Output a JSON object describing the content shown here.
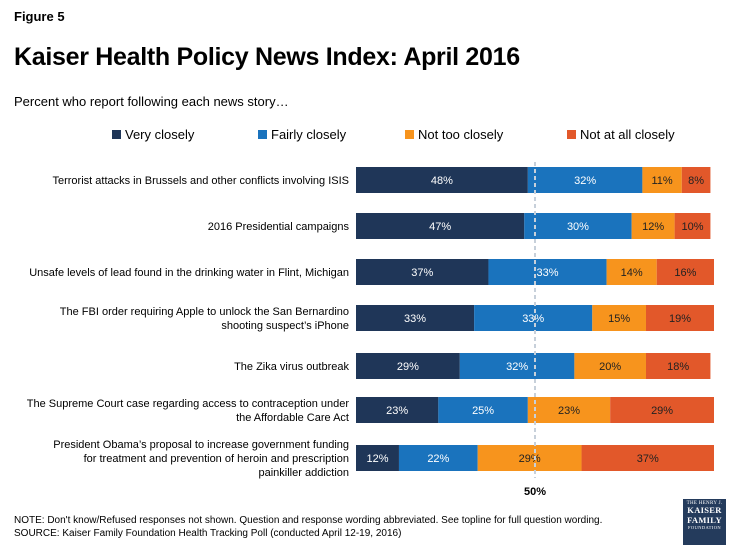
{
  "figure_label": "Figure 5",
  "title": "Kaiser Health Policy News Index: April 2016",
  "subtitle": "Percent who report following each news story…",
  "legend": [
    {
      "label": "Very closely",
      "color": "#1f3658"
    },
    {
      "label": "Fairly closely",
      "color": "#1a73bd"
    },
    {
      "label": "Not too closely",
      "color": "#f7941d"
    },
    {
      "label": "Not at all closely",
      "color": "#e2582a"
    }
  ],
  "chart_data": {
    "type": "bar",
    "orientation": "horizontal",
    "stacked": true,
    "categories": [
      [
        "Terrorist attacks in Brussels and other conflicts involving ISIS"
      ],
      [
        "2016 Presidential campaigns"
      ],
      [
        "Unsafe levels of lead found in the drinking water in Flint, Michigan"
      ],
      [
        "The FBI order requiring Apple to unlock the San Bernardino",
        "shooting suspect’s iPhone"
      ],
      [
        "The Zika virus outbreak"
      ],
      [
        "The Supreme Court case regarding access to contraception under",
        "the Affordable Care Act"
      ],
      [
        "President Obama’s proposal to increase government funding",
        "for treatment and prevention of heroin and prescription",
        "painkiller addiction"
      ]
    ],
    "series": [
      {
        "name": "Very closely",
        "color": "#1f3658",
        "values": [
          48,
          47,
          37,
          33,
          29,
          23,
          12
        ]
      },
      {
        "name": "Fairly closely",
        "color": "#1a73bd",
        "values": [
          32,
          30,
          33,
          33,
          32,
          25,
          22
        ]
      },
      {
        "name": "Not too closely",
        "color": "#f7941d",
        "values": [
          11,
          12,
          14,
          15,
          20,
          23,
          29
        ]
      },
      {
        "name": "Not at all closely",
        "color": "#e2582a",
        "values": [
          8,
          10,
          16,
          19,
          18,
          29,
          37
        ]
      }
    ],
    "xlim": [
      0,
      100
    ],
    "reference_line": {
      "value": 50,
      "label": "50%"
    },
    "value_suffix": "%"
  },
  "note_line1": "NOTE: Don't know/Refused responses not shown. Question and response wording abbreviated.  See topline for full question wording.",
  "note_line2": "SOURCE: Kaiser Family Foundation Health Tracking Poll (conducted April 12-19, 2016)",
  "logo": {
    "top": "THE HENRY J.",
    "line1": "KAISER",
    "line2": "FAMILY",
    "bottom": "FOUNDATION"
  }
}
